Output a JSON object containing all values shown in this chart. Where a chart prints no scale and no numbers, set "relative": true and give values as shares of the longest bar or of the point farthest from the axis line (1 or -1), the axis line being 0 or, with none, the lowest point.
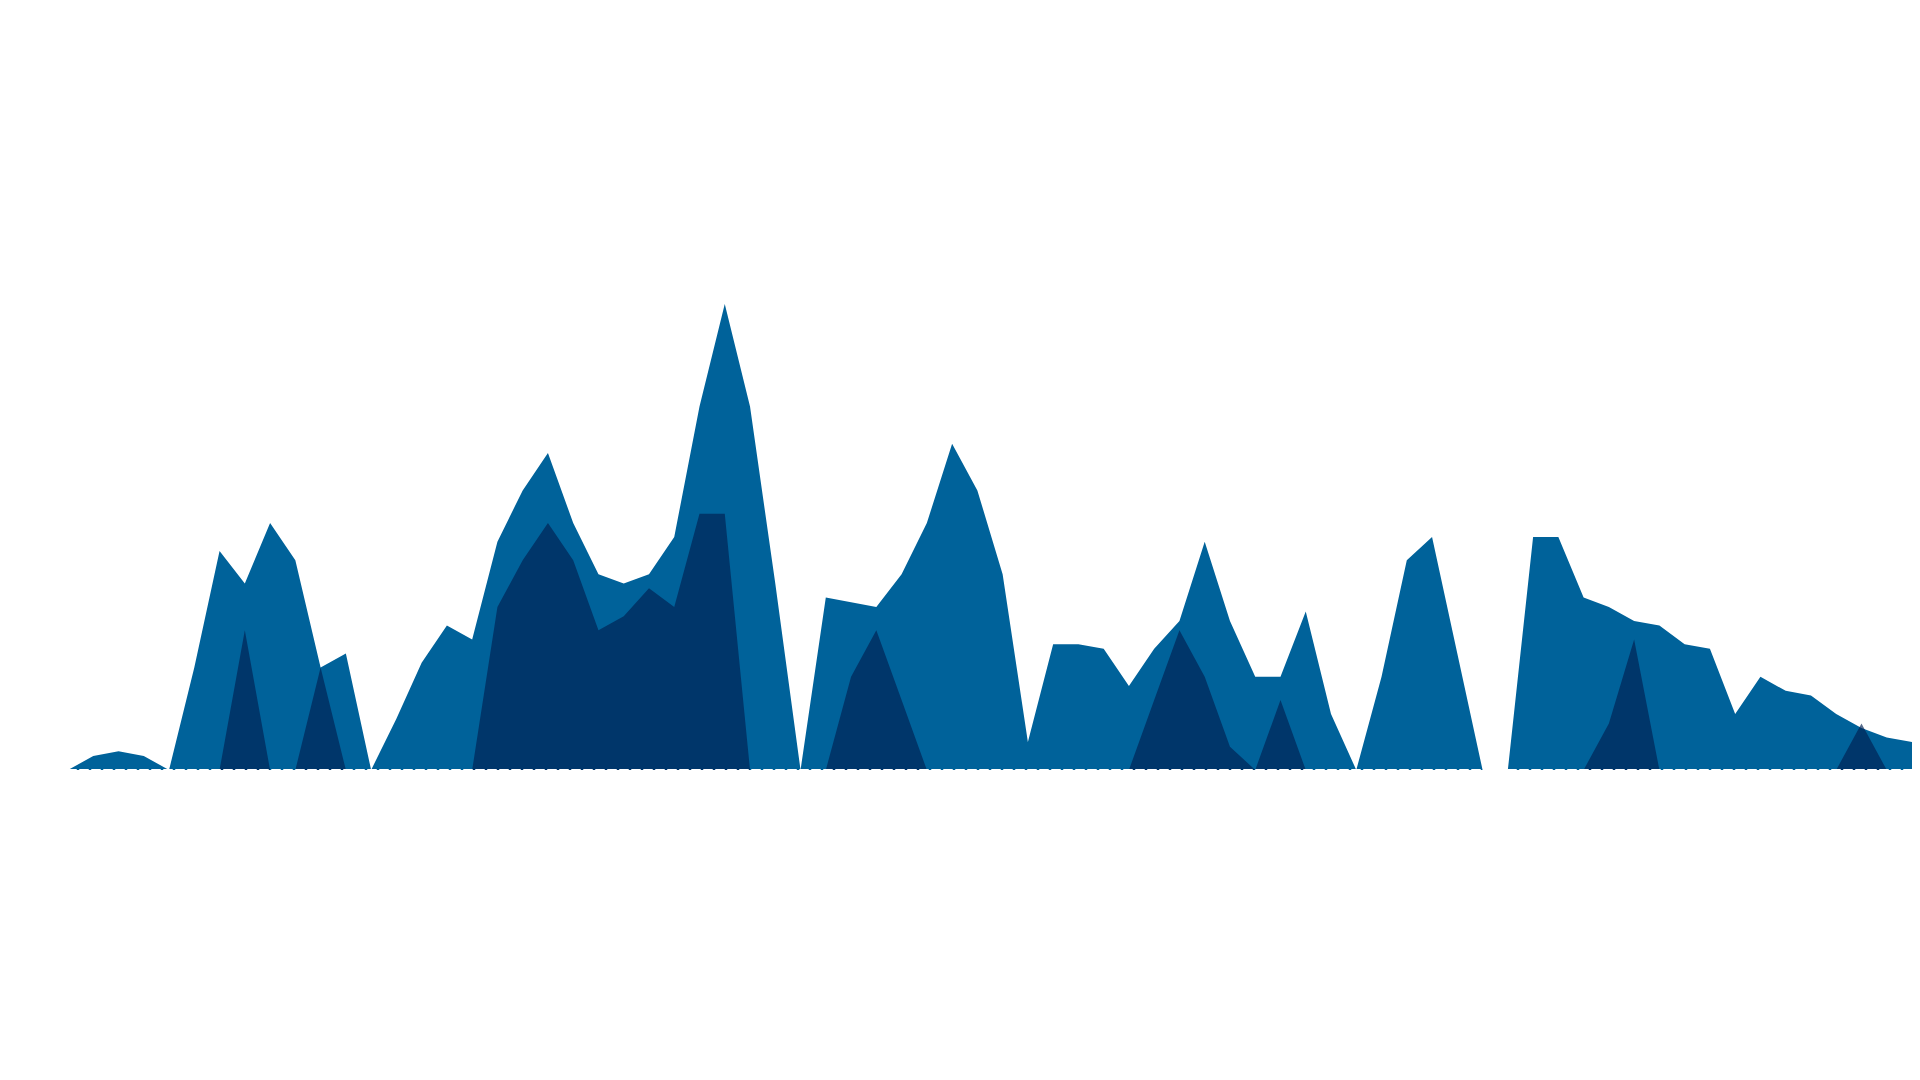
{
  "chart_data": {
    "type": "area",
    "relative": true,
    "grid": false,
    "categories": [
      null,
      null,
      null,
      null,
      null,
      null,
      null,
      null,
      null,
      null,
      null,
      null,
      null,
      null,
      null,
      null,
      null,
      null,
      null,
      null,
      null,
      null,
      null,
      null,
      null,
      null,
      null,
      null,
      null,
      null,
      null,
      null,
      null,
      null,
      null,
      null,
      null,
      null,
      null,
      null,
      null,
      null,
      null,
      null,
      null,
      null,
      null,
      null,
      null,
      null,
      null,
      null,
      null,
      null,
      null,
      null,
      null,
      null,
      null,
      null,
      null,
      null,
      null,
      null,
      null,
      null,
      null,
      null,
      null,
      null,
      null,
      null,
      null,
      null
    ],
    "series": [
      {
        "color": "#00629a",
        "values": [
          0,
          0.03,
          0.04,
          0.03,
          0,
          0.22,
          0.47,
          0.4,
          0.53,
          0.45,
          0.22,
          0.25,
          0,
          0.11,
          0.23,
          0.31,
          0.28,
          0.49,
          0.6,
          0.68,
          0.53,
          0.42,
          0.4,
          0.42,
          0.5,
          0.78,
          1,
          0.78,
          0.4,
          0,
          0.37,
          0.36,
          0.35,
          0.42,
          0.53,
          0.7,
          0.6,
          0.42,
          0.06,
          0.27,
          0.27,
          0.26,
          0.18,
          0.26,
          0.32,
          0.49,
          0.32,
          0.2,
          0.2,
          0.34,
          0.12,
          0,
          0.2,
          0.45,
          0.5,
          0.25,
          0,
          0,
          0.5,
          0.5,
          0.37,
          0.35,
          0.32,
          0.31,
          0.27,
          0.26,
          0.12,
          0.2,
          0.17,
          0.16,
          0.12,
          0.09,
          0.07,
          0.06
        ]
      },
      {
        "color": "#001e50",
        "values": [
          0,
          0,
          0,
          0,
          0,
          0,
          0,
          0.3,
          0,
          0,
          0.22,
          0,
          0,
          0,
          0,
          0,
          0,
          0.35,
          0.45,
          0.53,
          0.45,
          0.3,
          0.33,
          0.39,
          0.35,
          0.55,
          0.55,
          0,
          0,
          0,
          0,
          0.2,
          0.3,
          0.15,
          0,
          0,
          0,
          0,
          0,
          0,
          0,
          0,
          0,
          0.15,
          0.3,
          0.2,
          0.05,
          0,
          0.15,
          0,
          0,
          0,
          0,
          0,
          0,
          0,
          0,
          0,
          0,
          0,
          0,
          0.1,
          0.28,
          0,
          0,
          0,
          0,
          0,
          0,
          0,
          0,
          0.1,
          0,
          0
        ]
      }
    ]
  }
}
